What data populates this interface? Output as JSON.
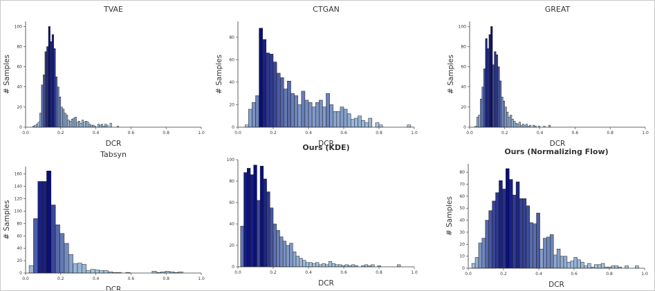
{
  "figure": {
    "description": ""
  },
  "chart_data": [
    {
      "type": "bar",
      "title": "TVAE",
      "title_bold": false,
      "xlabel": "DCR",
      "ylabel": "# Samples",
      "xlim": [
        0,
        1
      ],
      "ylim": [
        0,
        105
      ],
      "xticks": [
        0.0,
        0.2,
        0.4,
        0.6,
        0.8,
        1.0
      ],
      "xtick_labels": [
        "0.0",
        "0.2",
        "0.4",
        "0.6",
        "0.8",
        "1.0"
      ],
      "yticks": [
        0,
        20,
        40,
        60,
        80,
        100
      ],
      "bin_start": 0.0,
      "bin_width": 0.01,
      "counts": [
        0,
        0,
        0,
        0,
        1,
        2,
        3,
        5,
        14,
        42,
        52,
        75,
        80,
        100,
        85,
        92,
        78,
        50,
        40,
        30,
        20,
        18,
        14,
        12,
        7,
        6,
        8,
        9,
        10,
        5,
        6,
        4,
        7,
        5,
        6,
        5,
        3,
        2,
        2,
        1,
        0,
        3,
        2,
        3,
        1,
        3,
        2,
        0,
        4,
        0,
        0,
        0,
        1
      ]
    },
    {
      "type": "bar",
      "title": "CTGAN",
      "title_bold": false,
      "xlabel": "DCR",
      "ylabel": "# Samples",
      "xlim": [
        0,
        1
      ],
      "ylim": [
        0,
        94
      ],
      "xticks": [
        0.0,
        0.2,
        0.4,
        0.6,
        0.8,
        1.0
      ],
      "xtick_labels": [
        "0.0",
        "0.2",
        "0.4",
        "0.6",
        "0.8",
        "1.0"
      ],
      "yticks": [
        0,
        20,
        40,
        60,
        80
      ],
      "bin_start": 0.04,
      "bin_width": 0.02,
      "counts": [
        2,
        16,
        22,
        28,
        88,
        78,
        66,
        65,
        58,
        48,
        44,
        34,
        41,
        30,
        28,
        20,
        32,
        24,
        22,
        18,
        22,
        24,
        18,
        30,
        20,
        14,
        14,
        18,
        16,
        12,
        7,
        8,
        10,
        6,
        4,
        8,
        0,
        4,
        2,
        0,
        0,
        0,
        0,
        0,
        0,
        0,
        2
      ]
    },
    {
      "type": "bar",
      "title": "GREAT",
      "title_bold": false,
      "xlabel": "DCR",
      "ylabel": "# Samples",
      "xlim": [
        0,
        1
      ],
      "ylim": [
        0,
        105
      ],
      "xticks": [
        0.0,
        0.2,
        0.4,
        0.6,
        0.8,
        1.0
      ],
      "xtick_labels": [
        "0.0",
        "0.2",
        "0.4",
        "0.6",
        "0.8",
        "1.0"
      ],
      "yticks": [
        0,
        20,
        40,
        60,
        80,
        100
      ],
      "bin_start": 0.02,
      "bin_width": 0.01,
      "counts": [
        0,
        1,
        10,
        12,
        28,
        40,
        58,
        88,
        78,
        92,
        100,
        62,
        75,
        72,
        60,
        46,
        30,
        26,
        20,
        15,
        10,
        12,
        8,
        6,
        4,
        3,
        5,
        2,
        3,
        2,
        3,
        1,
        2,
        0,
        2,
        1,
        0,
        1,
        0,
        0,
        1,
        0,
        0,
        2
      ]
    },
    {
      "type": "bar",
      "title": "Tabsyn",
      "title_bold": false,
      "xlabel": "DCR",
      "ylabel": "# Samples",
      "xlim": [
        0,
        1
      ],
      "ylim": [
        0,
        172
      ],
      "xticks": [
        0.0,
        0.2,
        0.4,
        0.6,
        0.8,
        1.0
      ],
      "xtick_labels": [
        "0.0",
        "0.2",
        "0.4",
        "0.6",
        "0.8",
        "1.0"
      ],
      "yticks": [
        0,
        20,
        40,
        60,
        80,
        100,
        120,
        140,
        160
      ],
      "bin_start": 0.02,
      "bin_width": 0.025,
      "counts": [
        12,
        88,
        148,
        148,
        165,
        110,
        78,
        64,
        48,
        30,
        15,
        16,
        14,
        4,
        6,
        5,
        4,
        4,
        2,
        1,
        1,
        0,
        1,
        0,
        0,
        0,
        0,
        0,
        3,
        1,
        2,
        3,
        2,
        1,
        2
      ]
    },
    {
      "type": "bar",
      "title": "Ours (KDE)",
      "title_bold": true,
      "xlabel": "DCR",
      "ylabel": "",
      "xlim": [
        0,
        1
      ],
      "ylim": [
        0,
        100
      ],
      "xticks": [
        0.0,
        0.2,
        0.4,
        0.6,
        0.8,
        1.0
      ],
      "xtick_labels": [
        "0.0",
        "0.2",
        "0.4",
        "0.6",
        "0.8",
        "1.0"
      ],
      "yticks": [
        0,
        20,
        40,
        60,
        80,
        100
      ],
      "bin_start": 0.015,
      "bin_width": 0.0185,
      "counts": [
        38,
        88,
        92,
        86,
        95,
        62,
        94,
        82,
        70,
        55,
        40,
        34,
        28,
        24,
        20,
        22,
        14,
        10,
        8,
        6,
        4,
        4,
        3,
        4,
        2,
        3,
        2,
        5,
        3,
        2,
        2,
        1,
        2,
        1,
        2,
        1,
        0,
        1,
        2,
        1,
        2,
        0,
        1,
        0,
        0,
        0,
        0,
        0,
        2
      ]
    },
    {
      "type": "bar",
      "title": "Ours (Normalizing Flow)",
      "title_bold": true,
      "xlabel": "DCR",
      "ylabel": "# Samples",
      "xlim": [
        0,
        1
      ],
      "ylim": [
        0,
        87
      ],
      "xticks": [
        0.0,
        0.2,
        0.4,
        0.6,
        0.8,
        1.0
      ],
      "xtick_labels": [
        "0.0",
        "0.2",
        "0.4",
        "0.6",
        "0.8",
        "1.0"
      ],
      "yticks": [
        0,
        10,
        20,
        30,
        40,
        50,
        60,
        70,
        80
      ],
      "bin_start": 0.02,
      "bin_width": 0.0193,
      "counts": [
        4,
        9,
        21,
        25,
        40,
        48,
        56,
        63,
        73,
        66,
        83,
        74,
        61,
        72,
        58,
        58,
        52,
        38,
        37,
        46,
        16,
        25,
        26,
        28,
        11,
        16,
        10,
        10,
        5,
        6,
        9,
        7,
        5,
        2,
        4,
        1,
        3,
        3,
        4,
        1,
        1,
        2,
        2,
        1,
        0,
        2,
        0,
        0,
        2,
        0,
        0,
        0,
        0,
        0,
        0,
        0,
        0,
        0,
        0
      ]
    }
  ]
}
